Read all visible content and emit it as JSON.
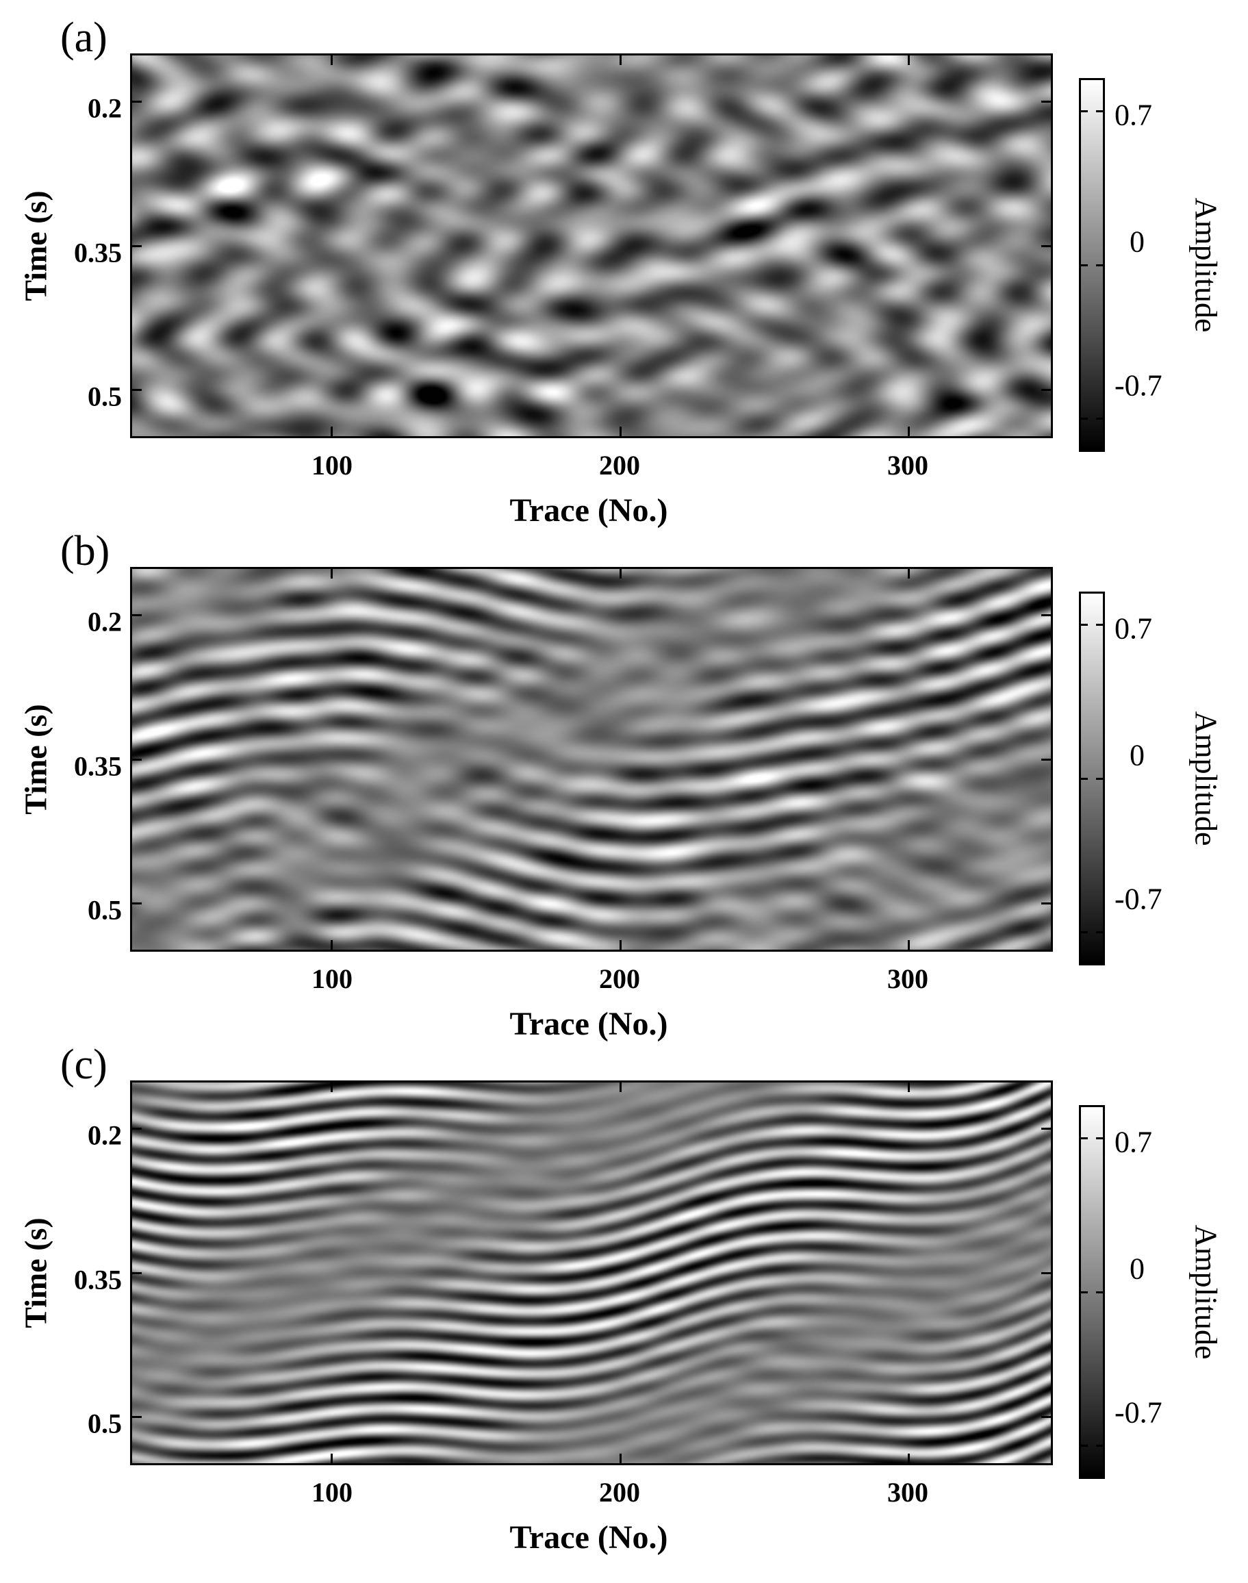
{
  "chart_data": [
    {
      "type": "heatmap",
      "panel_label": "(a)",
      "xlabel": "Trace (No.)",
      "ylabel": "Time (s)",
      "colorbar_label": "Amplitude",
      "xlim": [
        30,
        350
      ],
      "ylim": [
        0.15,
        0.55
      ],
      "x_ticks": [
        100,
        200,
        300
      ],
      "x_tick_labels": [
        "100",
        "200",
        "300"
      ],
      "y_ticks": [
        0.2,
        0.35,
        0.5
      ],
      "y_tick_labels": [
        "0.2",
        "0.35",
        "0.5"
      ],
      "colorbar_ticks": [
        0.7,
        0,
        -0.7
      ],
      "colorbar_tick_labels": [
        "0.7",
        "0",
        "-0.7"
      ],
      "colormap": "gray",
      "clim": [
        -0.85,
        0.85
      ],
      "seed": 11,
      "waves": 7,
      "sharpness": 0.45
    },
    {
      "type": "heatmap",
      "panel_label": "(b)",
      "xlabel": "Trace (No.)",
      "ylabel": "Time (s)",
      "colorbar_label": "Amplitude",
      "xlim": [
        30,
        350
      ],
      "ylim": [
        0.15,
        0.55
      ],
      "x_ticks": [
        100,
        200,
        300
      ],
      "x_tick_labels": [
        "100",
        "200",
        "300"
      ],
      "y_ticks": [
        0.2,
        0.35,
        0.5
      ],
      "y_tick_labels": [
        "0.2",
        "0.35",
        "0.5"
      ],
      "colorbar_ticks": [
        0.7,
        0,
        -0.7
      ],
      "colorbar_tick_labels": [
        "0.7",
        "0",
        "-0.7"
      ],
      "colormap": "gray",
      "clim": [
        -0.85,
        0.85
      ],
      "seed": 23,
      "waves": 12,
      "sharpness": 0.7
    },
    {
      "type": "heatmap",
      "panel_label": "(c)",
      "xlabel": "Trace (No.)",
      "ylabel": "Time (s)",
      "colorbar_label": "Amplitude",
      "xlim": [
        30,
        350
      ],
      "ylim": [
        0.15,
        0.55
      ],
      "x_ticks": [
        100,
        200,
        300
      ],
      "x_tick_labels": [
        "100",
        "200",
        "300"
      ],
      "y_ticks": [
        0.2,
        0.35,
        0.5
      ],
      "y_tick_labels": [
        "0.2",
        "0.35",
        "0.5"
      ],
      "colorbar_ticks": [
        0.7,
        0,
        -0.7
      ],
      "colorbar_tick_labels": [
        "0.7",
        "0",
        "-0.7"
      ],
      "colormap": "gray",
      "clim": [
        -0.85,
        0.85
      ],
      "seed": 37,
      "waves": 18,
      "sharpness": 0.9
    }
  ]
}
